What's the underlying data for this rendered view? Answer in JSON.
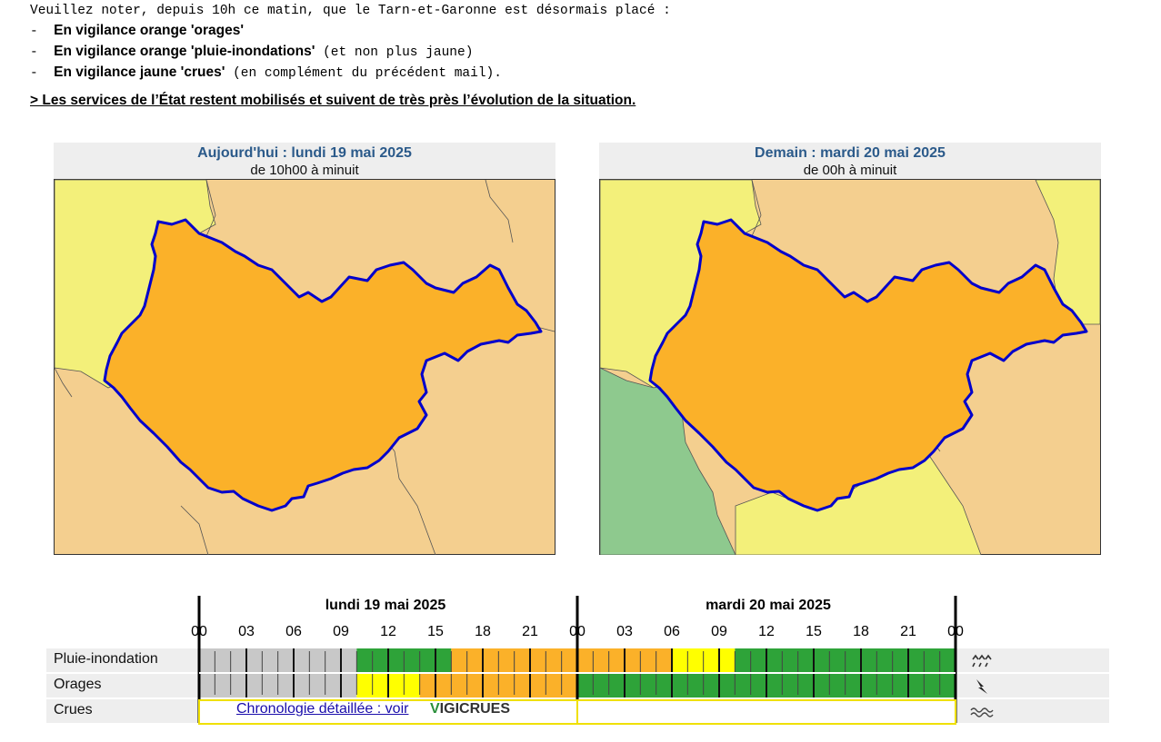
{
  "intro": {
    "line1": "Veuillez noter, depuis 10h ce matin, que le Tarn-et-Garonne est désormais placé :",
    "items": [
      {
        "dash": "-  ",
        "bold": "En vigilance orange 'orages'",
        "rest": ""
      },
      {
        "dash": "-  ",
        "bold": "En vigilance orange 'pluie-inondations'",
        "rest": " (et non plus jaune)"
      },
      {
        "dash": "-  ",
        "bold": "En vigilance jaune 'crues'",
        "rest": " (en complément du précédent mail)."
      }
    ]
  },
  "notice": "> Les services de l’État restent mobilisés et suivent de très près l’évolution de la situation.",
  "maps": {
    "today": {
      "title": "Aujourd'hui : lundi 19 mai 2025",
      "subtitle": "de 10h00 à minuit"
    },
    "tomorrow": {
      "title": "Demain : mardi 20 mai 2025",
      "subtitle": "de 00h à minuit"
    }
  },
  "chronology": {
    "days": [
      "lundi 19 mai 2025",
      "mardi 20 mai 2025"
    ],
    "hours": [
      "00",
      "03",
      "06",
      "09",
      "12",
      "15",
      "18",
      "21",
      "00",
      "03",
      "06",
      "09",
      "12",
      "15",
      "18",
      "21",
      "00"
    ],
    "rows": [
      {
        "label": "Pluie-inondation",
        "icon": "rain-icon",
        "segments": [
          {
            "from": 0,
            "to": 10,
            "level": "none"
          },
          {
            "from": 10,
            "to": 16,
            "level": "green"
          },
          {
            "from": 16,
            "to": 30,
            "level": "orange"
          },
          {
            "from": 30,
            "to": 34,
            "level": "yellow"
          },
          {
            "from": 34,
            "to": 48,
            "level": "green"
          }
        ]
      },
      {
        "label": "Orages",
        "icon": "lightning-icon",
        "segments": [
          {
            "from": 0,
            "to": 10,
            "level": "none"
          },
          {
            "from": 10,
            "to": 14,
            "level": "yellow"
          },
          {
            "from": 14,
            "to": 24,
            "level": "orange"
          },
          {
            "from": 24,
            "to": 48,
            "level": "green"
          }
        ]
      },
      {
        "label": "Crues",
        "icon": "waves-icon"
      }
    ],
    "crues_link": "Chronologie détaillée : voir",
    "vigicrues_v": "V",
    "vigicrues_rest": "IGICRUES"
  },
  "colors": {
    "orange": "#fbb129",
    "yellow": "#ffff00",
    "green": "#2ea339",
    "none": "#c8c8c8",
    "map_light_orange": "#f4cf8f",
    "map_yellow": "#f3f07a",
    "map_green": "#8ec98e",
    "border": "#0000cc",
    "title": "#2b5a8a"
  }
}
